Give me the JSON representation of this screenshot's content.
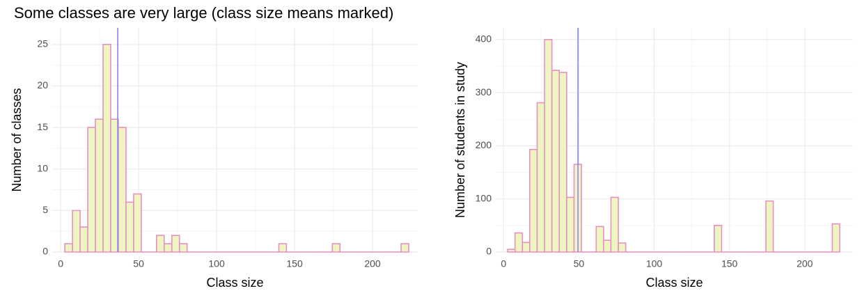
{
  "title": "Some classes are very large (class size means marked)",
  "chart_data": [
    {
      "type": "histogram",
      "x_label": "Class size",
      "y_label": "Number of classes",
      "bins": [
        2.7,
        7.6,
        12.5,
        17.4,
        22.3,
        27.2,
        32.1,
        37.0,
        41.9,
        46.8,
        51.7,
        56.6,
        61.5,
        66.4,
        71.3,
        76.2,
        81.1,
        86.0,
        90.9,
        95.8,
        100.7,
        105.6,
        110.5,
        115.4,
        120.3,
        125.2,
        130.1,
        135.0,
        139.9,
        144.8,
        149.7,
        154.6,
        159.5,
        164.4,
        169.3,
        174.2,
        179.1,
        184.0,
        188.9,
        193.8,
        198.7,
        203.6,
        208.5,
        213.4,
        218.3,
        223.2
      ],
      "values": [
        1,
        5,
        3,
        15,
        16,
        25,
        16,
        15,
        6,
        7,
        0,
        0,
        2,
        1,
        2,
        1,
        0,
        0,
        0,
        0,
        0,
        0,
        0,
        0,
        0,
        0,
        0,
        0,
        1,
        0,
        0,
        0,
        0,
        0,
        0,
        1,
        0,
        0,
        0,
        0,
        0,
        0,
        0,
        0,
        1
      ],
      "fill": "#eff5c0",
      "color": "#e78fc6",
      "mean_line": 36.6,
      "mean_color": "#8585f5",
      "xlim": [
        -5.4,
        229
      ],
      "ylim": [
        0,
        27
      ],
      "xticks": [
        0,
        50,
        100,
        150,
        200
      ],
      "yticks": [
        0,
        5,
        10,
        15,
        20,
        25
      ],
      "grid": true
    },
    {
      "type": "histogram",
      "x_label": "Class size",
      "y_label": "Number of students in study",
      "bins": [
        2.7,
        7.6,
        12.5,
        17.4,
        22.3,
        27.2,
        32.1,
        37.0,
        41.9,
        46.8,
        51.7,
        56.6,
        61.5,
        66.4,
        71.3,
        76.2,
        81.1,
        86.0,
        90.9,
        95.8,
        100.7,
        105.6,
        110.5,
        115.4,
        120.3,
        125.2,
        130.1,
        135.0,
        139.9,
        144.8,
        149.7,
        154.6,
        159.5,
        164.4,
        169.3,
        174.2,
        179.1,
        184.0,
        188.9,
        193.8,
        198.7,
        203.6,
        208.5,
        213.4,
        218.3,
        223.2
      ],
      "values": [
        5,
        36,
        18,
        193,
        281,
        400,
        342,
        338,
        103,
        165,
        0,
        0,
        48,
        22,
        103,
        17,
        0,
        0,
        0,
        0,
        0,
        0,
        0,
        0,
        0,
        0,
        0,
        0,
        50,
        0,
        0,
        0,
        0,
        0,
        0,
        96,
        0,
        0,
        0,
        0,
        0,
        0,
        0,
        0,
        53
      ],
      "fill": "#eff5c0",
      "color": "#e78fc6",
      "mean_line": 49.4,
      "mean_color": "#8585f5",
      "xlim": [
        -5.2,
        232
      ],
      "ylim": [
        0,
        422
      ],
      "xticks": [
        0,
        50,
        100,
        150,
        200
      ],
      "yticks": [
        0,
        100,
        200,
        300,
        400
      ],
      "grid": true
    }
  ]
}
